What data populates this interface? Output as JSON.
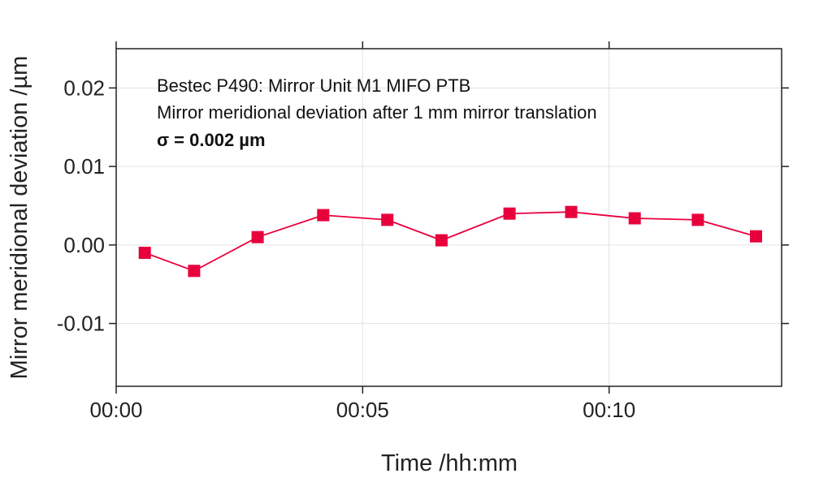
{
  "chart_data": {
    "type": "line",
    "title": "",
    "xlabel": "Time /hh:mm",
    "ylabel": "Mirror meridional deviation /µm",
    "x_unit": "minutes",
    "xlim": [
      0,
      13.5
    ],
    "ylim": [
      -0.018,
      0.025
    ],
    "x_ticks": [
      {
        "value": 0,
        "label": "00:00"
      },
      {
        "value": 5,
        "label": "00:05"
      },
      {
        "value": 10,
        "label": "00:10"
      }
    ],
    "y_ticks": [
      {
        "value": 0.02,
        "label": "0.02"
      },
      {
        "value": 0.01,
        "label": "0.01"
      },
      {
        "value": 0.0,
        "label": "0.00"
      },
      {
        "value": -0.01,
        "label": "-0.01"
      }
    ],
    "grid": true,
    "marker": "square",
    "series": [
      {
        "name": "",
        "color": "#e8003d",
        "x": [
          0.58,
          1.58,
          2.87,
          4.2,
          5.5,
          6.6,
          7.98,
          9.23,
          10.52,
          11.8,
          12.98
        ],
        "y": [
          -0.001,
          -0.0033,
          0.001,
          0.0038,
          0.0032,
          0.0006,
          0.004,
          0.0042,
          0.0034,
          0.0032,
          0.0011
        ]
      }
    ],
    "annotations": [
      {
        "text": "Bestec P490: Mirror Unit M1 MIFO PTB",
        "bold": false
      },
      {
        "text": "Mirror meridional deviation after 1 mm mirror translation",
        "bold": false
      },
      {
        "text": "σ = 0.002 µm",
        "bold": true
      }
    ]
  }
}
